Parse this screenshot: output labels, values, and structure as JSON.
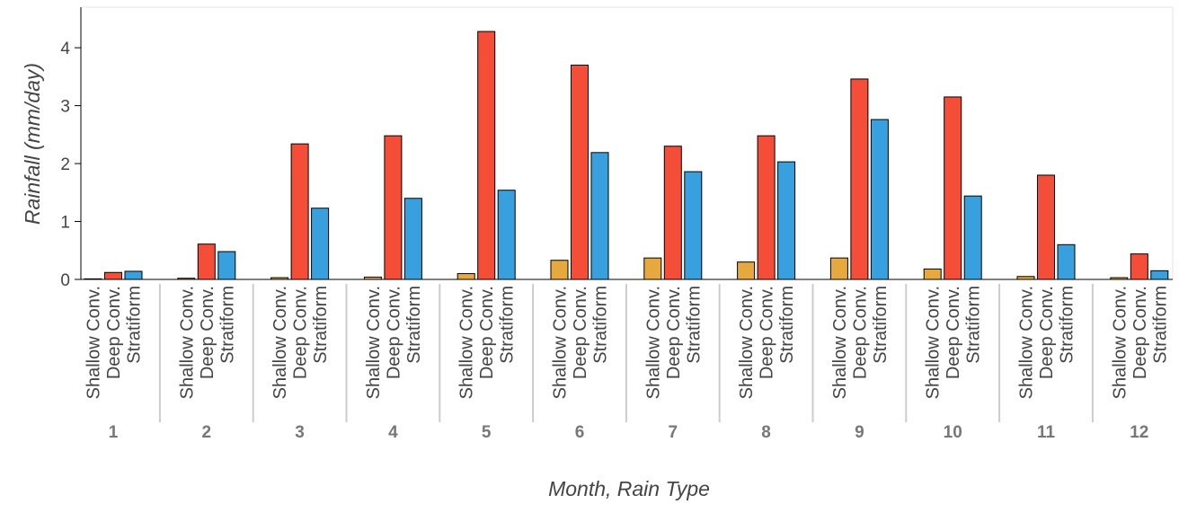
{
  "chart_data": {
    "type": "bar",
    "x_label": "Month, Rain Type",
    "y_label": "Rainfall (mm/day)",
    "categories": [
      "1",
      "2",
      "3",
      "4",
      "5",
      "6",
      "7",
      "8",
      "9",
      "10",
      "11",
      "12"
    ],
    "series": [
      {
        "name": "Shallow Conv.",
        "color": "#e6a93d",
        "values": [
          0.01,
          0.02,
          0.03,
          0.04,
          0.1,
          0.33,
          0.37,
          0.3,
          0.37,
          0.18,
          0.05,
          0.03
        ]
      },
      {
        "name": "Deep Conv.",
        "color": "#f44d38",
        "values": [
          0.12,
          0.61,
          2.34,
          2.48,
          4.28,
          3.7,
          2.3,
          2.48,
          3.46,
          3.15,
          1.8,
          0.44
        ]
      },
      {
        "name": "Stratiform",
        "color": "#38a0dc",
        "values": [
          0.14,
          0.48,
          1.23,
          1.4,
          1.54,
          2.19,
          1.86,
          2.03,
          2.76,
          1.44,
          0.6,
          0.15
        ]
      }
    ],
    "ylim": [
      0,
      4.7
    ],
    "yticks": [
      0,
      1,
      2,
      3,
      4
    ]
  }
}
